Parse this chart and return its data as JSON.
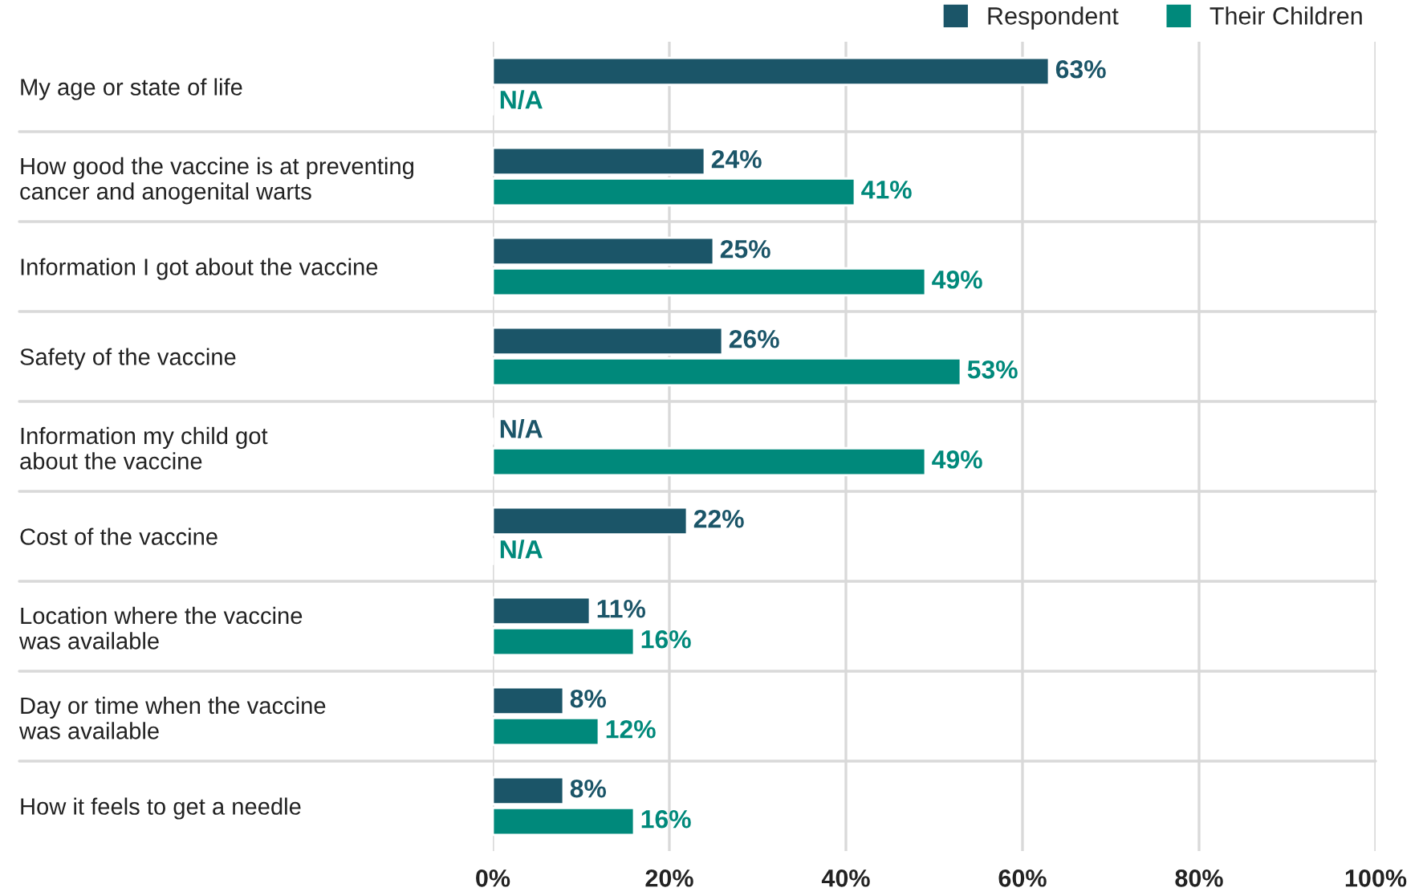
{
  "chart_data": {
    "type": "bar",
    "orientation": "horizontal",
    "categories": [
      "My age or state of life",
      "How good the vaccine is at preventing\ncancer and anogenital warts",
      "Information I got about the vaccine",
      "Safety of the vaccine",
      "Information my child got\nabout the vaccine",
      "Cost of the vaccine",
      "Location where the vaccine\nwas available",
      "Day or time when the vaccine\nwas available",
      "How it feels to get a needle"
    ],
    "series": [
      {
        "name": "Respondent",
        "color": "#1b5568",
        "values": [
          63,
          24,
          25,
          26,
          null,
          22,
          11,
          8,
          8
        ],
        "value_labels": [
          "63%",
          "24%",
          "25%",
          "26%",
          "N/A",
          "22%",
          "11%",
          "8%",
          "8%"
        ]
      },
      {
        "name": "Their Children",
        "color": "#00897b",
        "values": [
          null,
          41,
          49,
          53,
          49,
          null,
          16,
          12,
          16
        ],
        "value_labels": [
          "N/A",
          "41%",
          "49%",
          "53%",
          "49%",
          "N/A",
          "16%",
          "12%",
          "16%"
        ]
      }
    ],
    "xlim": [
      0,
      100
    ],
    "xticks": [
      {
        "value": 0,
        "label": "0%"
      },
      {
        "value": 20,
        "label": "20%"
      },
      {
        "value": 40,
        "label": "40%"
      },
      {
        "value": 60,
        "label": "60%"
      },
      {
        "value": 80,
        "label": "80%"
      },
      {
        "value": 100,
        "label": "100%"
      }
    ],
    "grid": true,
    "legend": "top right"
  }
}
